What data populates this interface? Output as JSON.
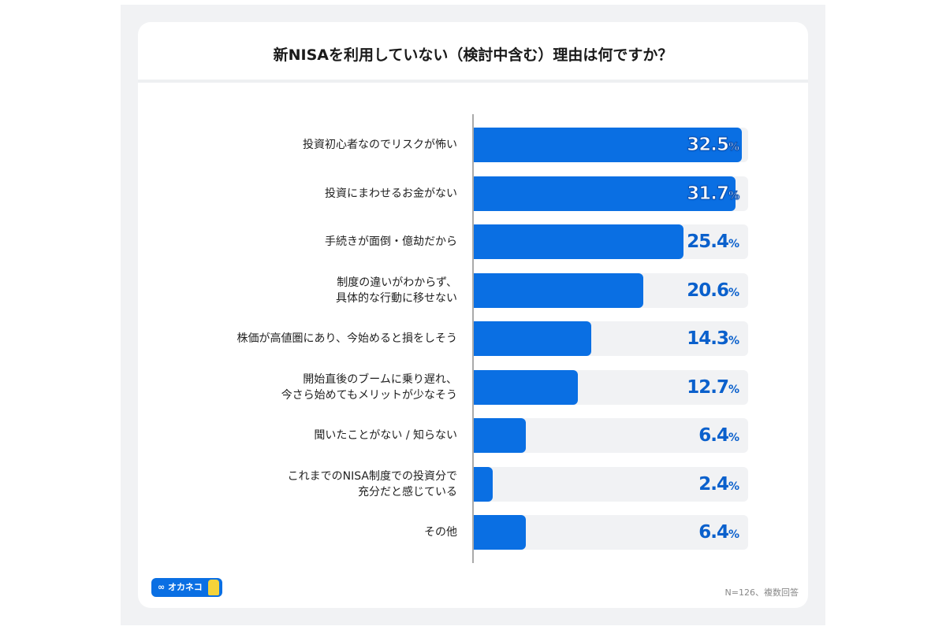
{
  "chart_data": {
    "type": "bar",
    "orientation": "horizontal",
    "title": "新NISAを利用していない（検討中含む）理由は何ですか？",
    "categories": [
      "投資初心者なのでリスクが怖い",
      "投資にまわせるお金がない",
      "手続きが面倒・億劫だから",
      "制度の違いがわからず、\n具体的な行動に移せない",
      "株価が高値圏にあり、今始めると損をしそう",
      "開始直後のブームに乗り遅れ、\n今さら始めてもメリットが少なそう",
      "聞いたことがない / 知らない",
      "これまでのNISA制度での投資分で\n充分だと感じている",
      "その他"
    ],
    "values": [
      32.5,
      31.7,
      25.4,
      20.6,
      14.3,
      12.7,
      6.4,
      2.4,
      6.4
    ],
    "value_labels": [
      "32.5",
      "31.7",
      "25.4",
      "20.6",
      "14.3",
      "12.7",
      "6.4",
      "2.4",
      "6.4"
    ],
    "unit": "%",
    "bar_color": "#0a6fe3",
    "track_color": "#f1f2f4",
    "note": "N=126、複数回答"
  },
  "logo": {
    "text": "∞ オカネコ"
  }
}
